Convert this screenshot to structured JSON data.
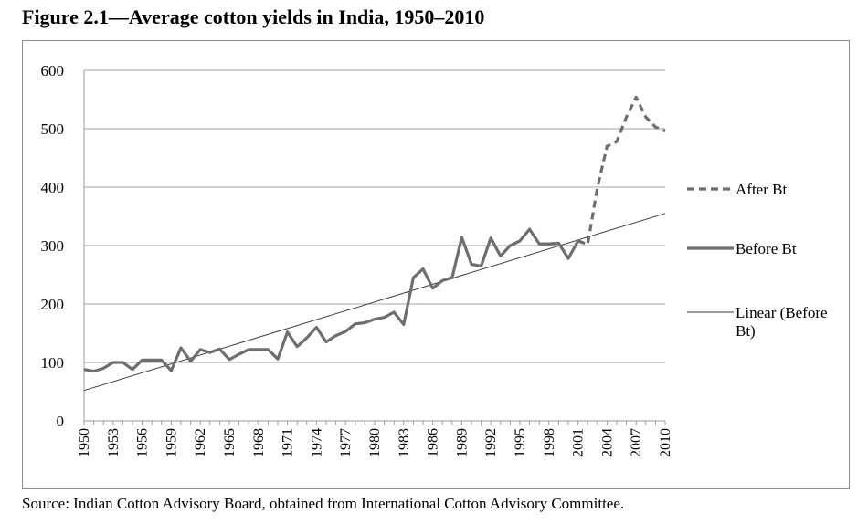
{
  "figure_title": "Figure 2.1—Average cotton yields in India, 1950–2010",
  "source_note": "Source:  Indian Cotton Advisory Board, obtained from International Cotton Advisory Committee.",
  "colors": {
    "series": "#6e6e6e",
    "trend": "#3c3c3c",
    "grid": "#a6a6a6",
    "axis": "#9a9a9a"
  },
  "chart_data": {
    "type": "line",
    "title": "Figure 2.1—Average cotton yields in India, 1950–2010",
    "xlabel": "",
    "ylabel": "",
    "xlim": [
      1950,
      2010
    ],
    "ylim": [
      0,
      600
    ],
    "yticks": [
      0,
      100,
      200,
      300,
      400,
      500,
      600
    ],
    "xticks": [
      1950,
      1953,
      1956,
      1959,
      1962,
      1965,
      1968,
      1971,
      1974,
      1977,
      1980,
      1983,
      1986,
      1989,
      1992,
      1995,
      1998,
      2001,
      2004,
      2007,
      2010
    ],
    "grid": true,
    "legend_position": "right",
    "series": [
      {
        "name": "After Bt",
        "style": "dashed",
        "x": [
          2001,
          2002,
          2003,
          2004,
          2005,
          2006,
          2007,
          2008,
          2009,
          2010
        ],
        "y": [
          308,
          302,
          399,
          470,
          478,
          520,
          554,
          520,
          503,
          496
        ]
      },
      {
        "name": "Before Bt",
        "style": "solid",
        "x": [
          1950,
          1951,
          1952,
          1953,
          1954,
          1955,
          1956,
          1957,
          1958,
          1959,
          1960,
          1961,
          1962,
          1963,
          1964,
          1965,
          1966,
          1967,
          1968,
          1969,
          1970,
          1971,
          1972,
          1973,
          1974,
          1975,
          1976,
          1977,
          1978,
          1979,
          1980,
          1981,
          1982,
          1983,
          1984,
          1985,
          1986,
          1987,
          1988,
          1989,
          1990,
          1991,
          1992,
          1993,
          1994,
          1995,
          1996,
          1997,
          1998,
          1999,
          2000,
          2001
        ],
        "y": [
          88,
          85,
          90,
          100,
          100,
          88,
          104,
          104,
          104,
          86,
          125,
          102,
          122,
          117,
          123,
          105,
          114,
          122,
          122,
          122,
          106,
          152,
          127,
          142,
          160,
          135,
          146,
          153,
          166,
          168,
          174,
          177,
          186,
          165,
          245,
          260,
          227,
          240,
          245,
          314,
          268,
          265,
          313,
          282,
          300,
          308,
          328,
          303,
          303,
          304,
          278,
          308
        ]
      },
      {
        "name": "Linear (Before Bt)",
        "style": "thin",
        "x": [
          1950,
          2010
        ],
        "y": [
          52,
          355
        ]
      }
    ]
  }
}
